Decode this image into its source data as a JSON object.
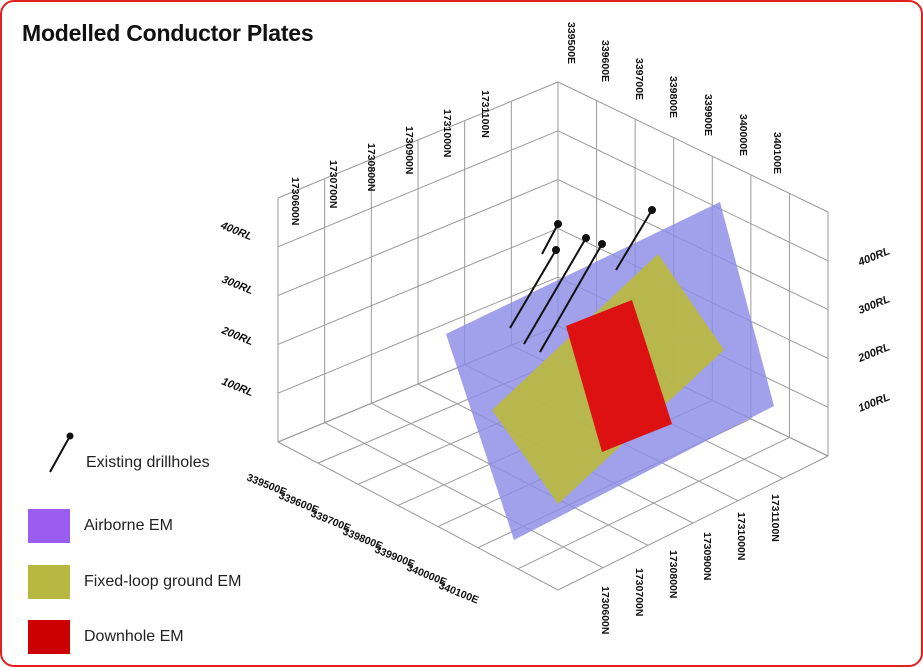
{
  "title": "Modelled Conductor Plates",
  "top_left_northing_labels": [
    "1730600N",
    "1730700N",
    "1730800N",
    "1730900N",
    "1731000N",
    "1731100N"
  ],
  "top_right_easting_labels": [
    "339500E",
    "339600E",
    "339700E",
    "339800E",
    "339900E",
    "340000E",
    "340100E"
  ],
  "left_rl_labels": [
    "400RL",
    "300RL",
    "200RL",
    "100RL"
  ],
  "right_rl_labels": [
    "400RL",
    "300RL",
    "200RL",
    "100RL"
  ],
  "bottom_left_easting_labels": [
    "339500E",
    "339600E",
    "339700E",
    "339800E",
    "339900E",
    "340000E",
    "340100E"
  ],
  "bottom_right_northing_labels": [
    "1730600N",
    "1730700N",
    "1730800N",
    "1730900N",
    "1731000N",
    "1731100N"
  ],
  "legend": {
    "drillholes": "Existing drillholes",
    "airborne": "Airborne EM",
    "fixed_loop": "Fixed-loop ground EM",
    "downhole": "Downhole EM"
  },
  "colors": {
    "airborne": "#8c8ce6",
    "fixed_loop": "#b8b840",
    "downhole": "#dd1111",
    "grid": "#9a9a9a",
    "frame": "#e02020"
  }
}
